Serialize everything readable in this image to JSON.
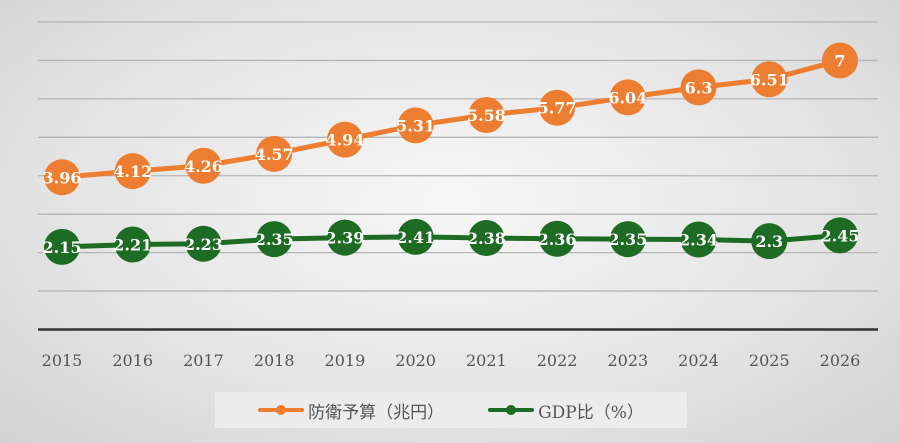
{
  "chart_data": {
    "type": "line",
    "title": "",
    "categories": [
      "2015",
      "2016",
      "2017",
      "2018",
      "2019",
      "2020",
      "2021",
      "2022",
      "2023",
      "2024",
      "2025",
      "2026"
    ],
    "series": [
      {
        "name": "防衛予算（兆円）",
        "color": "#ED7D31",
        "values": [
          3.96,
          4.12,
          4.26,
          4.57,
          4.94,
          5.31,
          5.58,
          5.77,
          6.04,
          6.3,
          6.51,
          7
        ]
      },
      {
        "name": "GDP比（%）",
        "color": "#1E6B24",
        "values": [
          2.15,
          2.21,
          2.23,
          2.35,
          2.39,
          2.41,
          2.38,
          2.36,
          2.35,
          2.34,
          2.3,
          2.45
        ]
      }
    ],
    "ylim": [
      0,
      8
    ],
    "grid": true,
    "legend": "bottom",
    "xlabel": "",
    "ylabel": ""
  }
}
